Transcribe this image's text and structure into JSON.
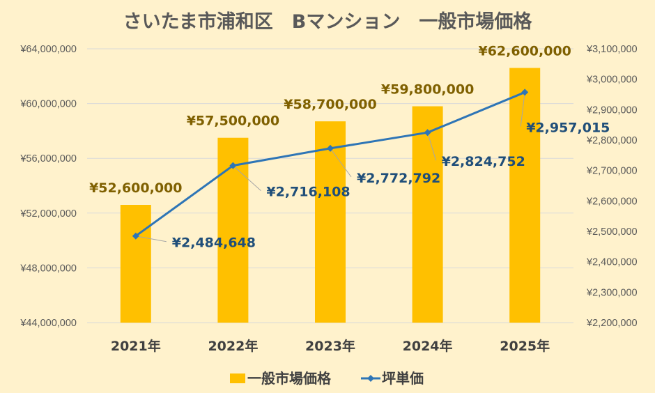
{
  "chart_data": {
    "type": "bar",
    "title": "さいたま市浦和区　Bマンション　一般市場価格",
    "categories": [
      "2021年",
      "2022年",
      "2023年",
      "2024年",
      "2025年"
    ],
    "series": [
      {
        "name": "一般市場価格",
        "kind": "bar",
        "axis": "left",
        "color": "#FFC000",
        "values": [
          52600000,
          57500000,
          58700000,
          59800000,
          62600000
        ],
        "labels": [
          "¥52,600,000",
          "¥57,500,000",
          "¥58,700,000",
          "¥59,800,000",
          "¥62,600,000"
        ]
      },
      {
        "name": "坪単価",
        "kind": "line",
        "axis": "right",
        "color": "#2E75B6",
        "values": [
          2484648,
          2716108,
          2772792,
          2824752,
          2957015
        ],
        "labels": [
          "¥2,484,648",
          "¥2,716,108",
          "¥2,772,792",
          "¥2,824,752",
          "¥2,957,015"
        ]
      }
    ],
    "y_left": {
      "ylim": [
        44000000,
        64000000
      ],
      "ticks": [
        44000000,
        48000000,
        52000000,
        56000000,
        60000000,
        64000000
      ],
      "tick_labels": [
        "¥44,000,000",
        "¥48,000,000",
        "¥52,000,000",
        "¥56,000,000",
        "¥60,000,000",
        "¥64,000,000"
      ]
    },
    "y_right": {
      "ylim": [
        2200000,
        3100000
      ],
      "ticks": [
        2200000,
        2300000,
        2400000,
        2500000,
        2600000,
        2700000,
        2800000,
        2900000,
        3000000,
        3100000
      ],
      "tick_labels": [
        "¥2,200,000",
        "¥2,300,000",
        "¥2,400,000",
        "¥2,500,000",
        "¥2,600,000",
        "¥2,700,000",
        "¥2,800,000",
        "¥2,900,000",
        "¥3,000,000",
        "¥3,100,000"
      ]
    },
    "grid": true,
    "legend": "bottom",
    "background": "#FFF2CC",
    "gridline_color": "#D9D9D9"
  }
}
